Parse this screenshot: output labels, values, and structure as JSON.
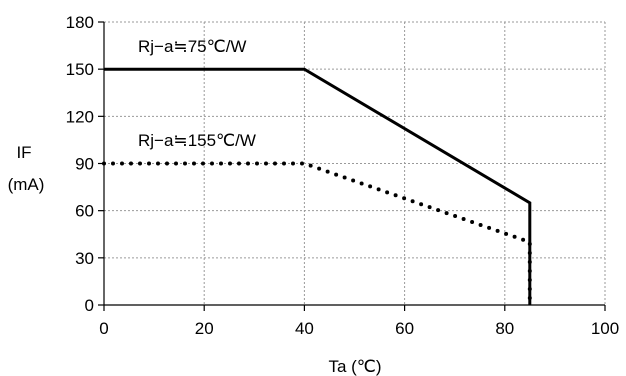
{
  "chart_data": {
    "type": "line",
    "xlabel": "Ta (℃)",
    "ylabel_line1": "IF",
    "ylabel_line2": "(mA)",
    "xlim": [
      0,
      100
    ],
    "ylim": [
      0,
      180
    ],
    "xticks": [
      0,
      20,
      40,
      60,
      80,
      100
    ],
    "yticks": [
      0,
      30,
      60,
      90,
      120,
      150,
      180
    ],
    "grid": true,
    "grid_color": "#9a9a9a",
    "line_color": "#000000",
    "series": [
      {
        "label": "Rj−a≒75℃/W",
        "style": "solid",
        "points": [
          [
            0,
            150
          ],
          [
            40,
            150
          ],
          [
            85,
            65
          ],
          [
            85,
            0
          ]
        ]
      },
      {
        "label": "Rj−a≒155℃/W",
        "style": "dotted",
        "points": [
          [
            0,
            90
          ],
          [
            40,
            90
          ],
          [
            85,
            40
          ],
          [
            85,
            0
          ]
        ]
      }
    ]
  }
}
